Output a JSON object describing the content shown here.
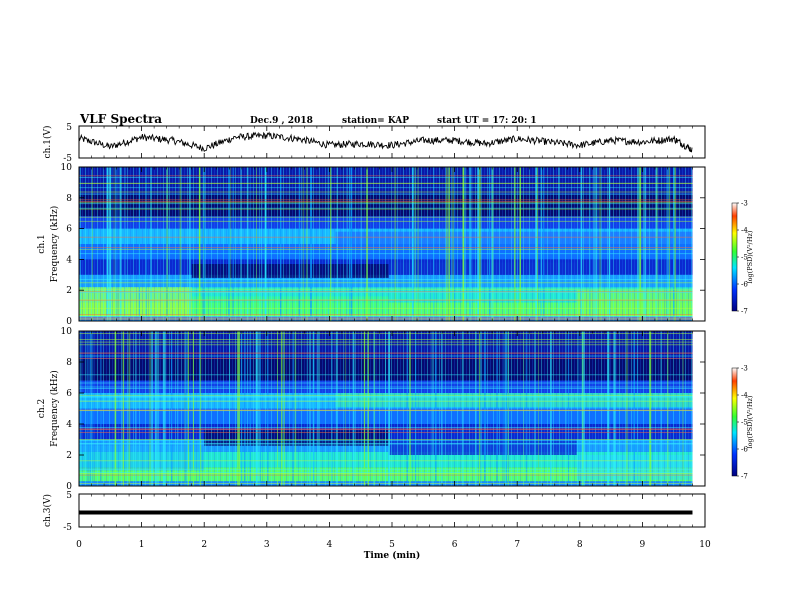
{
  "header": {
    "title": "VLF Spectra",
    "date": "Dec.9  , 2018",
    "station": "station= KAP",
    "start_ut": "start  UT  =   17: 20: 1"
  },
  "chart_data": [
    {
      "type": "line",
      "panel": "ch1-waveform",
      "ylabel": "ch.1(V)",
      "ylim": [
        -5,
        5
      ],
      "yticks": [
        "5",
        "-5"
      ],
      "x": [
        0,
        0.5,
        1,
        1.5,
        2,
        2.5,
        3,
        3.5,
        4,
        4.5,
        5,
        5.5,
        6,
        6.5,
        7,
        7.5,
        8,
        8.5,
        9,
        9.5,
        9.8
      ],
      "y": [
        1.2,
        -1.5,
        1.5,
        0.5,
        -2.0,
        1.5,
        2.0,
        1.0,
        -1.0,
        -0.5,
        -1.0,
        0.5,
        0.5,
        -0.5,
        1.0,
        0.0,
        -1.0,
        0.5,
        0.0,
        1.0,
        -2.5
      ]
    },
    {
      "type": "heatmap",
      "panel": "ch1-spectrogram",
      "ylabel_top": "ch.1",
      "ylabel": "Frequency (kHz)",
      "ylim": [
        0,
        10
      ],
      "yticks": [
        "0",
        "2",
        "4",
        "6",
        "8",
        "10"
      ],
      "colorbar": {
        "label": "log(PSD)(V²/Hz)",
        "range": [
          -7,
          -3
        ],
        "ticks": [
          "-3",
          "-4",
          "-5",
          "-6",
          "-7"
        ]
      }
    },
    {
      "type": "heatmap",
      "panel": "ch2-spectrogram",
      "ylabel_top": "ch.2",
      "ylabel": "Frequency (kHz)",
      "ylim": [
        0,
        10
      ],
      "yticks": [
        "0",
        "2",
        "4",
        "6",
        "8",
        "10"
      ],
      "colorbar": {
        "label": "log(PSD)(V²/Hz)",
        "range": [
          -7,
          -3
        ],
        "ticks": [
          "-3",
          "-4",
          "-5",
          "-6",
          "-7"
        ]
      }
    },
    {
      "type": "line",
      "panel": "ch3-waveform",
      "ylabel": "ch.3(V)",
      "ylim": [
        -5,
        5
      ],
      "yticks": [
        "5",
        "-5"
      ],
      "x": [
        0,
        9.8
      ],
      "y": [
        0,
        0
      ]
    }
  ],
  "xaxis": {
    "label": "Time  (min)",
    "ticks": [
      "0",
      "1",
      "2",
      "3",
      "4",
      "5",
      "6",
      "7",
      "8",
      "9",
      "10"
    ],
    "xlim": [
      0,
      10
    ]
  },
  "colors": {
    "dark": "#00008b",
    "blue": "#1e3cff",
    "cyan": "#00e5ff",
    "green": "#2eff3a",
    "yellow": "#ffff00",
    "red": "#ff0000",
    "line": "#000000"
  }
}
